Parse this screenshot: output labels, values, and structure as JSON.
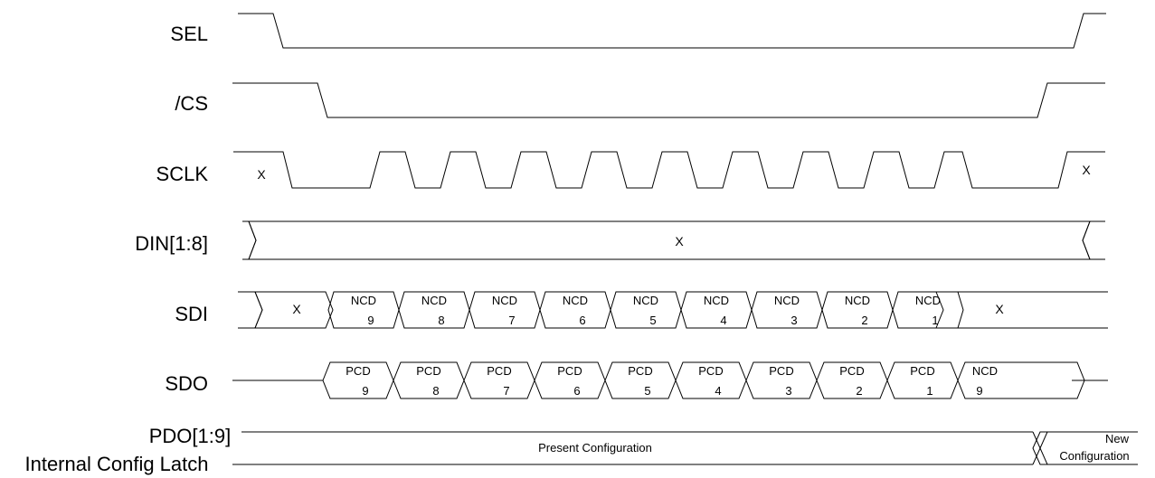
{
  "signals": {
    "sel": "SEL",
    "cs": "/CS",
    "sclk": "SCLK",
    "din": "DIN[1:8]",
    "sdi": "SDI",
    "sdo": "SDO",
    "pdo_line1": "PDO[1:9]",
    "pdo_line2": "Internal Config Latch"
  },
  "sclk": {
    "start_value": "X",
    "end_value": "X"
  },
  "din": {
    "value": "X"
  },
  "sdi": {
    "lead_value": "X",
    "cells": [
      {
        "top": "NCD",
        "bottom": "9"
      },
      {
        "top": "NCD",
        "bottom": "8"
      },
      {
        "top": "NCD",
        "bottom": "7"
      },
      {
        "top": "NCD",
        "bottom": "6"
      },
      {
        "top": "NCD",
        "bottom": "5"
      },
      {
        "top": "NCD",
        "bottom": "4"
      },
      {
        "top": "NCD",
        "bottom": "3"
      },
      {
        "top": "NCD",
        "bottom": "2"
      },
      {
        "top": "NCD",
        "bottom": "1"
      }
    ],
    "trail_value": "X"
  },
  "sdo": {
    "cells": [
      {
        "top": "PCD",
        "bottom": "9"
      },
      {
        "top": "PCD",
        "bottom": "8"
      },
      {
        "top": "PCD",
        "bottom": "7"
      },
      {
        "top": "PCD",
        "bottom": "6"
      },
      {
        "top": "PCD",
        "bottom": "5"
      },
      {
        "top": "PCD",
        "bottom": "4"
      },
      {
        "top": "PCD",
        "bottom": "3"
      },
      {
        "top": "PCD",
        "bottom": "2"
      },
      {
        "top": "PCD",
        "bottom": "1"
      },
      {
        "top": "NCD",
        "bottom": "9"
      }
    ]
  },
  "pdo": {
    "present": "Present Configuration",
    "new_line1": "New",
    "new_line2": "Configuration"
  }
}
